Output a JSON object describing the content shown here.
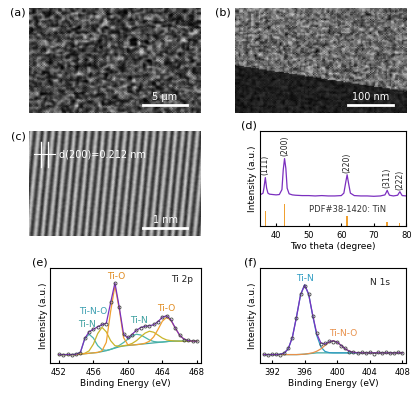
{
  "chart_data": [
    {
      "type": "image",
      "title": "(a)",
      "scale_bar": "5 μm"
    },
    {
      "type": "image",
      "title": "(b)",
      "scale_bar": "100 nm"
    },
    {
      "type": "image",
      "title": "(c)",
      "scale_bar": "1 nm",
      "annotations": [
        {
          "text": "d(200)=0.212 nm"
        }
      ]
    },
    {
      "type": "line",
      "title": "(d)",
      "x_label": "Two theta (degree)",
      "y_label": "Intensity (a.u.)",
      "xlim": [
        35,
        80
      ],
      "xticks": [
        40,
        50,
        60,
        70,
        80
      ],
      "ylim": [
        0,
        135
      ],
      "tick_labels": "x",
      "x": [
        35,
        35.5,
        36,
        36.3,
        36.7,
        37.1,
        37.5,
        38,
        39,
        40,
        41,
        41.8,
        42.2,
        42.6,
        43.0,
        43.4,
        44,
        45,
        46,
        48,
        50,
        52,
        54,
        56,
        58,
        60,
        60.8,
        61.4,
        61.8,
        62.2,
        62.8,
        64,
        66,
        68,
        70,
        72,
        73.4,
        73.8,
        74.1,
        74.4,
        74.8,
        76,
        77.3,
        77.7,
        78,
        78.3,
        78.7,
        80
      ],
      "series": [
        {
          "color": "#7b2fbf",
          "line_style": "solid",
          "values": [
            45,
            45.5,
            47,
            55,
            69,
            54,
            47,
            45.5,
            45,
            44.5,
            45,
            52,
            80,
            96,
            82,
            54,
            46,
            44.5,
            44,
            43.5,
            43.5,
            43,
            43.5,
            43,
            43,
            43.5,
            47,
            63,
            73,
            62,
            47,
            43.5,
            43,
            43,
            42.5,
            43,
            44.5,
            48,
            51,
            47.5,
            44,
            43,
            44,
            47,
            49,
            46.5,
            43.5,
            43
          ]
        },
        {
          "name": "PDF#38-1420: TiN",
          "type": "bar",
          "color": "#f0a030",
          "x": [
            36.66,
            42.6,
            61.81,
            74.07,
            77.96
          ],
          "values": [
            22,
            32,
            14,
            6,
            4
          ]
        }
      ],
      "annotations": [
        {
          "text": "(111)",
          "x": 36.7,
          "y": 72
        },
        {
          "text": "(200)",
          "x": 42.6,
          "y": 99
        },
        {
          "text": "(220)",
          "x": 61.8,
          "y": 76
        },
        {
          "text": "(311)",
          "x": 74.1,
          "y": 54
        },
        {
          "text": "(222)",
          "x": 78.0,
          "y": 52
        }
      ]
    },
    {
      "type": "line",
      "title": "(e)",
      "x_label": "Binding Energy (eV)",
      "y_label": "Intensity (a.u.)",
      "xlim": [
        451,
        468.5
      ],
      "xticks": [
        452,
        456,
        460,
        464,
        468
      ],
      "ylim": [
        0,
        110
      ],
      "tick_labels": "x",
      "x": [
        452,
        452.5,
        453,
        453.5,
        454,
        454.5,
        455,
        455.5,
        456,
        456.5,
        457,
        457.5,
        458,
        458.5,
        459,
        459.5,
        460,
        460.5,
        461,
        461.5,
        462,
        462.5,
        463,
        463.5,
        464,
        464.5,
        465,
        465.5,
        466,
        466.5,
        467,
        467.5,
        468
      ],
      "series": [
        {
          "color": "#3fa7a0",
          "line_style": "solid",
          "values": [
            10,
            10,
            10,
            10,
            10,
            10.5,
            11,
            11.5,
            12,
            12.5,
            13.5,
            14.5,
            16,
            17.5,
            19,
            20,
            20.5,
            21,
            21.5,
            22,
            22.5,
            23,
            23.5,
            24,
            24.5,
            25,
            25.5,
            25.5,
            25.5,
            25.5,
            25.5,
            25.5,
            25.5
          ]
        },
        {
          "color": "#4db6ac",
          "line_style": "solid",
          "values": [
            10,
            10,
            10,
            10,
            10.4,
            12.7,
            28.1,
            33.5,
            29.1,
            20.4,
            15.7,
            14.9,
            16,
            18,
            20.6,
            23.9,
            27.8,
            31.6,
            33.5,
            32.6,
            29.8,
            26.9,
            25.1,
            24.5,
            24.5,
            25,
            25.5,
            25.5,
            25.5,
            25.5,
            25.5,
            25.5,
            25.5
          ]
        },
        {
          "color": "#c9b52b",
          "line_style": "solid",
          "values": [
            10,
            10,
            10,
            10,
            10,
            10.5,
            11.5,
            14.3,
            22.1,
            34.2,
            41.5,
            36.2,
            26.1,
            20.3,
            19.5,
            20.2,
            21.1,
            22.9,
            26.1,
            30.5,
            34.8,
            37,
            35.8,
            32.5,
            29.1,
            26.9,
            26.1,
            25.7,
            25.5,
            25.5,
            25.5,
            25.5,
            25.5
          ]
        },
        {
          "color": "#f0a030",
          "line_style": "solid",
          "values": [
            10,
            10,
            10,
            10,
            10,
            10.5,
            11,
            11.5,
            12,
            12.5,
            14.3,
            24.2,
            59.7,
            89.5,
            62.7,
            29.7,
            21.3,
            21,
            21.5,
            22.1,
            23.1,
            25.4,
            30.5,
            39.1,
            48.5,
            53,
            49.5,
            40.6,
            32.5,
            27.9,
            26.1,
            25.6,
            25.5
          ]
        },
        {
          "color": "#7b2fbf",
          "line_style": "solid",
          "values": [
            10,
            10,
            10,
            10,
            10.4,
            12.7,
            28.6,
            36.3,
            39.2,
            42.1,
            44.5,
            46.3,
            69.8,
            92.8,
            64.8,
            33.8,
            29.2,
            33.5,
            38.1,
            41.2,
            42.7,
            43.3,
            44.4,
            48.1,
            53.1,
            54.9,
            50.1,
            40.8,
            32.5,
            27.9,
            26.1,
            25.6,
            25.5
          ]
        },
        {
          "color": "#444444",
          "line_style": "none",
          "marker": "circle",
          "values": [
            10.3,
            9.8,
            10.4,
            9.9,
            10.8,
            12.2,
            29.5,
            35.6,
            39.8,
            41.5,
            45.1,
            45.7,
            70.5,
            92.1,
            65.4,
            33.2,
            29.8,
            33.0,
            38.6,
            40.7,
            43.2,
            42.8,
            44.9,
            47.6,
            53.6,
            54.3,
            50.6,
            40.2,
            33.1,
            27.4,
            26.5,
            25.2,
            25.9
          ]
        }
      ],
      "annotations": [
        {
          "text": "Ti 2p",
          "x": 465.0,
          "y": 92,
          "color": "#222222"
        },
        {
          "text": "Ti-N",
          "x": 455.3,
          "y": 40,
          "color": "#3a9e9e"
        },
        {
          "text": "Ti-N-O",
          "x": 456.0,
          "y": 54,
          "color": "#3a9eb0"
        },
        {
          "text": "Ti-O",
          "x": 458.6,
          "y": 95,
          "color": "#e08a1e"
        },
        {
          "text": "Ti-N",
          "x": 461.3,
          "y": 44,
          "color": "#3a9e9e"
        },
        {
          "text": "Ti-O",
          "x": 464.5,
          "y": 58,
          "color": "#e08a1e"
        }
      ]
    },
    {
      "type": "line",
      "title": "(f)",
      "x_label": "Binding Energy (eV)",
      "y_label": "Intensity (a.u.)",
      "xlim": [
        390.5,
        408.5
      ],
      "xticks": [
        392,
        396,
        400,
        404,
        408
      ],
      "ylim": [
        0,
        110
      ],
      "tick_labels": "x",
      "x": [
        391,
        391.5,
        392,
        392.5,
        393,
        393.5,
        394,
        394.5,
        395,
        395.5,
        396,
        396.5,
        397,
        397.5,
        398,
        398.5,
        399,
        399.5,
        400,
        400.5,
        401,
        401.5,
        402,
        402.5,
        403,
        403.5,
        404,
        404.5,
        405,
        405.5,
        406,
        406.5,
        407,
        407.5,
        408
      ],
      "series": [
        {
          "color": "#3fa7a0",
          "line_style": "solid",
          "values": [
            10,
            10,
            10,
            10,
            10,
            10,
            10,
            10,
            10,
            10.2,
            10.5,
            11,
            11.5,
            12,
            12,
            12,
            12,
            12,
            12,
            12,
            12,
            12,
            12,
            12,
            12,
            12,
            12,
            12,
            12,
            12,
            12,
            12,
            12,
            12,
            12
          ]
        },
        {
          "color": "#2d9bc2",
          "line_style": "solid",
          "values": [
            10,
            10,
            10,
            10,
            10.3,
            11.7,
            16.8,
            30,
            53.2,
            78.8,
            90.5,
            79.6,
            54.7,
            32,
            18.8,
            13.7,
            12.3,
            12,
            12,
            12,
            12,
            12,
            12,
            12,
            12,
            12,
            12,
            12,
            12,
            12,
            12,
            12,
            12,
            12,
            12
          ]
        },
        {
          "color": "#e8904a",
          "line_style": "solid",
          "values": [
            10,
            10,
            10,
            10,
            10,
            10,
            10,
            10,
            10,
            10.2,
            10.5,
            11.2,
            12.1,
            13.9,
            16.6,
            20.5,
            24.3,
            26,
            24.3,
            20.5,
            16.6,
            13.9,
            12.6,
            12.2,
            12,
            12,
            12,
            12,
            12,
            12,
            12,
            12,
            12,
            12,
            12
          ]
        },
        {
          "color": "#7b2fbf",
          "line_style": "solid",
          "values": [
            10,
            10,
            10,
            10,
            10.3,
            11.7,
            16.8,
            30,
            53.2,
            78.8,
            90.5,
            79.8,
            55.3,
            33.9,
            23.4,
            22.2,
            24.6,
            26,
            24.3,
            20.5,
            16.6,
            13.9,
            12.6,
            12.2,
            12,
            12,
            12,
            12,
            12,
            12,
            12,
            12,
            12,
            12,
            12
          ]
        },
        {
          "color": "#444444",
          "line_style": "none",
          "marker": "circle",
          "values": [
            10.6,
            9.7,
            10.2,
            10.9,
            9.8,
            12.3,
            17.5,
            29.1,
            52.4,
            79.6,
            89.7,
            80.5,
            54.6,
            34.8,
            22.6,
            23.1,
            25.3,
            24.9,
            25.1,
            19.8,
            17.4,
            13.2,
            13.5,
            11.4,
            12.9,
            11.6,
            13.3,
            11.2,
            12.7,
            11.8,
            13.0,
            11.5,
            12.4,
            12.9,
            11.7
          ]
        }
      ],
      "annotations": [
        {
          "text": "N 1s",
          "x": 404.0,
          "y": 88,
          "color": "#222222"
        },
        {
          "text": "Ti-N",
          "x": 396.0,
          "y": 93,
          "color": "#2d9bc2"
        },
        {
          "text": "Ti-N-O",
          "x": 400.8,
          "y": 29,
          "color": "#e8904a"
        }
      ]
    }
  ]
}
